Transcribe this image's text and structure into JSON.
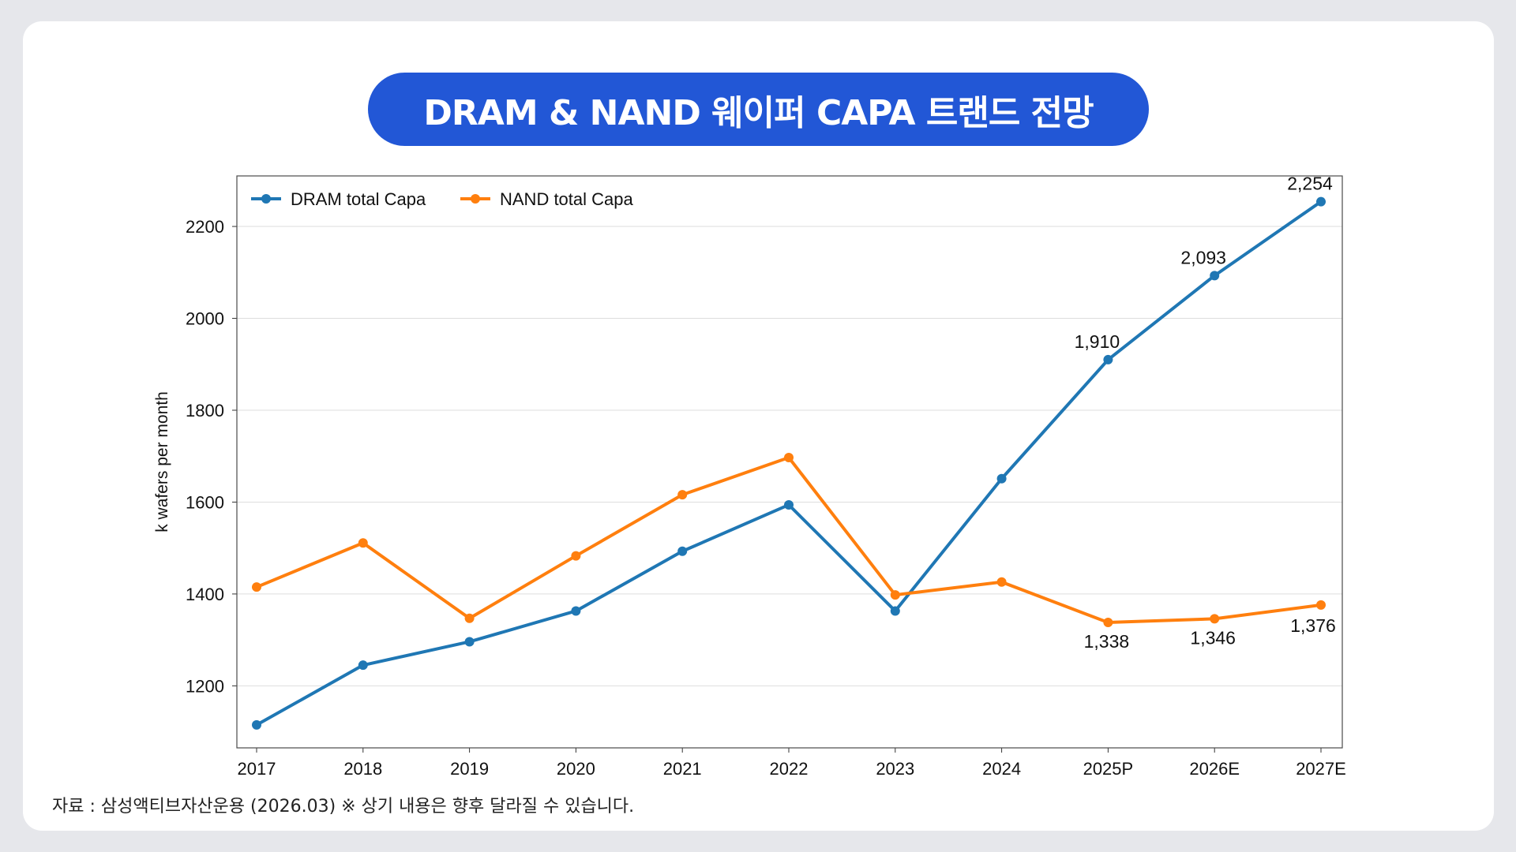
{
  "title": "DRAM & NAND 웨이퍼 CAPA 트랜드 전망",
  "source_note": "자료 : 삼성액티브자산운용 (2026.03) ※ 상기 내용은 향후 달라질 수 있습니다.",
  "colors": {
    "title_bg": "#2257d6",
    "dram": "#1f77b4",
    "nand": "#ff7f0e"
  },
  "chart_data": {
    "type": "line",
    "title": "",
    "xlabel": "",
    "ylabel": "k wafers per month",
    "categories": [
      "2017",
      "2018",
      "2019",
      "2020",
      "2021",
      "2022",
      "2023",
      "2024",
      "2025P",
      "2026E",
      "2027E"
    ],
    "y_ticks": [
      1200,
      1400,
      1600,
      1800,
      2000,
      2200
    ],
    "ylim": [
      1065,
      2310
    ],
    "grid": true,
    "legend_position": "top-left",
    "series": [
      {
        "name": "DRAM total Capa",
        "color": "#1f77b4",
        "values": [
          1115,
          1245,
          1296,
          1363,
          1493,
          1594,
          1363,
          1651,
          1910,
          2093,
          2254
        ],
        "labels": [
          "",
          "",
          "",
          "",
          "",
          "",
          "",
          "",
          "1,910",
          "2,093",
          "2,254"
        ]
      },
      {
        "name": "NAND total Capa",
        "color": "#ff7f0e",
        "values": [
          1415,
          1511,
          1347,
          1483,
          1616,
          1697,
          1398,
          1426,
          1338,
          1346,
          1376
        ],
        "labels": [
          "",
          "",
          "",
          "",
          "",
          "",
          "",
          "",
          "1,338",
          "1,346",
          "1,376"
        ]
      }
    ]
  }
}
